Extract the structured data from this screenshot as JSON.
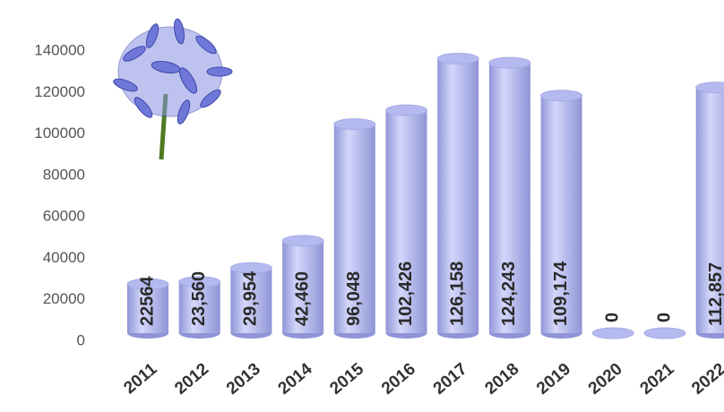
{
  "chart_data": {
    "type": "bar",
    "categories": [
      "2011",
      "2012",
      "2013",
      "2014",
      "2015",
      "2016",
      "2017",
      "2018",
      "2019",
      "2020",
      "2021",
      "2022"
    ],
    "values": [
      22564,
      23560,
      29954,
      42460,
      96048,
      102426,
      126158,
      124243,
      109174,
      0,
      0,
      112857
    ],
    "value_labels": [
      "22564",
      "23,560",
      "29,954",
      "42,460",
      "96,048",
      "102,426",
      "126,158",
      "124,243",
      "109,174",
      "0",
      "0",
      "112,857"
    ],
    "color": "#b4b9ef",
    "ylim": [
      0,
      140000
    ],
    "yticks": [
      0,
      20000,
      40000,
      60000,
      80000,
      100000,
      120000,
      140000
    ],
    "grid": false
  }
}
